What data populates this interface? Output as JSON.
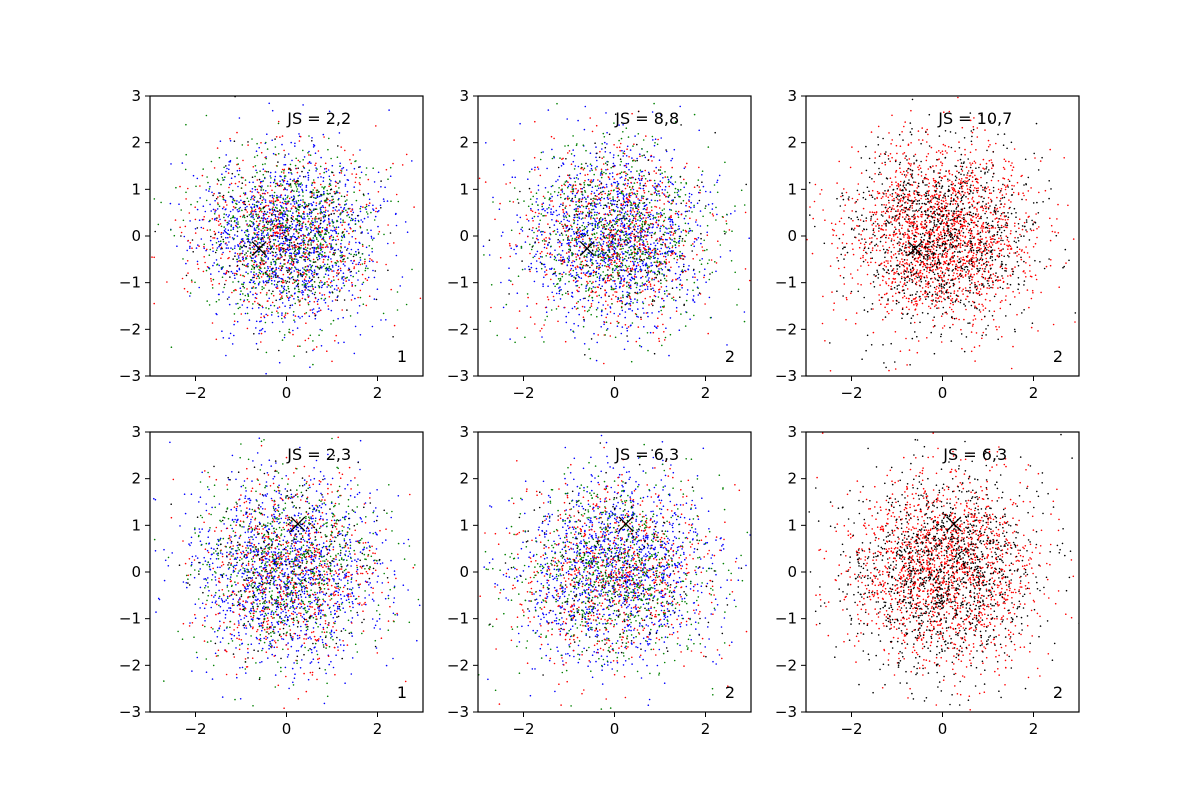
{
  "chart_data": [
    {
      "type": "scatter",
      "title": "JS = 2,2",
      "corner_label": "1",
      "xlim": [
        -3,
        3
      ],
      "ylim": [
        -3,
        3
      ],
      "xticks": [
        "−2",
        "0",
        "2"
      ],
      "xtick_values": [
        -2,
        0,
        2
      ],
      "yticks": [
        "−3",
        "−2",
        "−1",
        "0",
        "1",
        "2",
        "3"
      ],
      "ytick_values": [
        -3,
        -2,
        -1,
        0,
        1,
        2,
        3
      ],
      "marker": {
        "x": -0.6,
        "y": -0.27,
        "symbol": "x",
        "color": "#000000"
      },
      "series": [
        {
          "color": "#0000ff",
          "count": 1300,
          "seed": 11
        },
        {
          "color": "#ff0000",
          "count": 700,
          "seed": 12
        },
        {
          "color": "#008000",
          "count": 800,
          "seed": 13
        },
        {
          "color": "#000000",
          "count": 250,
          "seed": 14
        }
      ],
      "distribution": {
        "mean": [
          0,
          0
        ],
        "std": [
          0.95,
          0.9
        ]
      }
    },
    {
      "type": "scatter",
      "title": "JS = 8,8",
      "corner_label": "2",
      "xlim": [
        -3,
        3
      ],
      "ylim": [
        -3,
        3
      ],
      "xticks": [
        "−2",
        "0",
        "2"
      ],
      "xtick_values": [
        -2,
        0,
        2
      ],
      "yticks": [
        "−3",
        "−2",
        "−1",
        "0",
        "1",
        "2",
        "3"
      ],
      "ytick_values": [
        -3,
        -2,
        -1,
        0,
        1,
        2,
        3
      ],
      "marker": {
        "x": -0.6,
        "y": -0.27,
        "symbol": "x",
        "color": "#000000"
      },
      "series": [
        {
          "color": "#0000ff",
          "count": 1300,
          "seed": 21
        },
        {
          "color": "#ff0000",
          "count": 800,
          "seed": 22
        },
        {
          "color": "#008000",
          "count": 800,
          "seed": 23
        },
        {
          "color": "#000000",
          "count": 200,
          "seed": 24
        }
      ],
      "distribution": {
        "mean": [
          0,
          0
        ],
        "std": [
          1.0,
          0.95
        ]
      }
    },
    {
      "type": "scatter",
      "title": "JS = 10,7",
      "corner_label": "2",
      "xlim": [
        -3,
        3
      ],
      "ylim": [
        -3,
        3
      ],
      "xticks": [
        "−2",
        "0",
        "2"
      ],
      "xtick_values": [
        -2,
        0,
        2
      ],
      "yticks": [
        "−3",
        "−2",
        "−1",
        "0",
        "1",
        "2",
        "3"
      ],
      "ytick_values": [
        -3,
        -2,
        -1,
        0,
        1,
        2,
        3
      ],
      "marker": {
        "x": -0.6,
        "y": -0.27,
        "symbol": "x",
        "color": "#000000"
      },
      "series": [
        {
          "color": "#ff0000",
          "count": 1900,
          "seed": 31
        },
        {
          "color": "#000000",
          "count": 1200,
          "seed": 32
        }
      ],
      "distribution": {
        "mean": [
          0,
          0
        ],
        "std": [
          1.0,
          0.95
        ]
      }
    },
    {
      "type": "scatter",
      "title": "JS = 2,3",
      "corner_label": "1",
      "xlim": [
        -3,
        3
      ],
      "ylim": [
        -3,
        3
      ],
      "xticks": [
        "−2",
        "0",
        "2"
      ],
      "xtick_values": [
        -2,
        0,
        2
      ],
      "yticks": [
        "−3",
        "−2",
        "−1",
        "0",
        "1",
        "2",
        "3"
      ],
      "ytick_values": [
        -3,
        -2,
        -1,
        0,
        1,
        2,
        3
      ],
      "marker": {
        "x": 0.25,
        "y": 1.03,
        "symbol": "x",
        "color": "#000000"
      },
      "series": [
        {
          "color": "#0000ff",
          "count": 1300,
          "seed": 41
        },
        {
          "color": "#ff0000",
          "count": 750,
          "seed": 42
        },
        {
          "color": "#008000",
          "count": 750,
          "seed": 43
        },
        {
          "color": "#000000",
          "count": 250,
          "seed": 44
        }
      ],
      "distribution": {
        "mean": [
          0,
          0
        ],
        "std": [
          1.0,
          1.0
        ]
      }
    },
    {
      "type": "scatter",
      "title": "JS = 6,3",
      "corner_label": "2",
      "xlim": [
        -3,
        3
      ],
      "ylim": [
        -3,
        3
      ],
      "xticks": [
        "−2",
        "0",
        "2"
      ],
      "xtick_values": [
        -2,
        0,
        2
      ],
      "yticks": [
        "−3",
        "−2",
        "−1",
        "0",
        "1",
        "2",
        "3"
      ],
      "ytick_values": [
        -3,
        -2,
        -1,
        0,
        1,
        2,
        3
      ],
      "marker": {
        "x": 0.25,
        "y": 1.03,
        "symbol": "x",
        "color": "#000000"
      },
      "series": [
        {
          "color": "#0000ff",
          "count": 1300,
          "seed": 51
        },
        {
          "color": "#ff0000",
          "count": 800,
          "seed": 52
        },
        {
          "color": "#008000",
          "count": 800,
          "seed": 53
        },
        {
          "color": "#000000",
          "count": 200,
          "seed": 54
        }
      ],
      "distribution": {
        "mean": [
          0,
          0
        ],
        "std": [
          1.05,
          1.0
        ]
      }
    },
    {
      "type": "scatter",
      "title": "JS = 6,3",
      "corner_label": "2",
      "xlim": [
        -3,
        3
      ],
      "ylim": [
        -3,
        3
      ],
      "xticks": [
        "−2",
        "0",
        "2"
      ],
      "xtick_values": [
        -2,
        0,
        2
      ],
      "yticks": [
        "−3",
        "−2",
        "−1",
        "0",
        "1",
        "2",
        "3"
      ],
      "ytick_values": [
        -3,
        -2,
        -1,
        0,
        1,
        2,
        3
      ],
      "marker": {
        "x": 0.25,
        "y": 1.03,
        "symbol": "x",
        "color": "#000000"
      },
      "series": [
        {
          "color": "#ff0000",
          "count": 1700,
          "seed": 61
        },
        {
          "color": "#000000",
          "count": 1400,
          "seed": 62
        }
      ],
      "distribution": {
        "mean": [
          0,
          0
        ],
        "std": [
          1.05,
          1.0
        ]
      }
    }
  ]
}
